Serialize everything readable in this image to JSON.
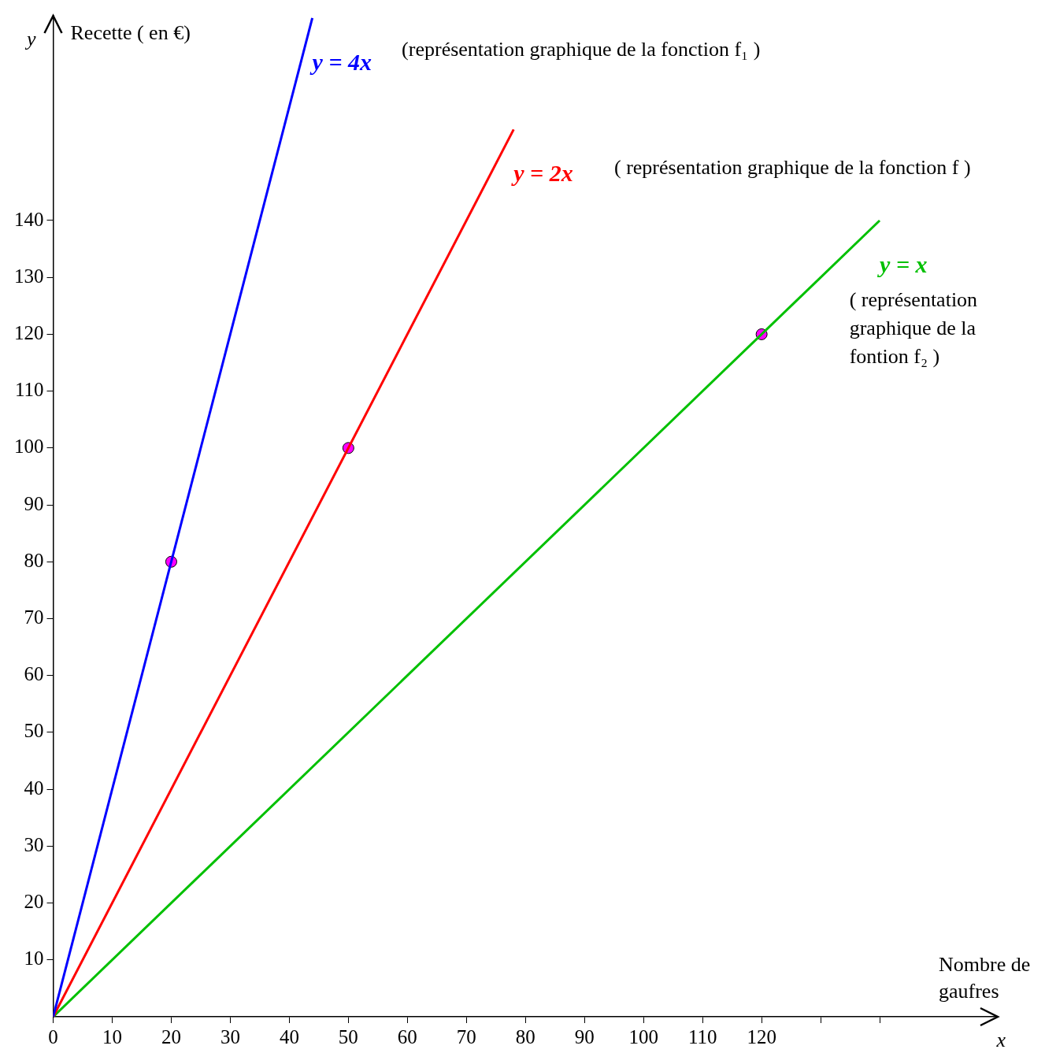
{
  "chart_data": {
    "type": "line",
    "xlabel": "x",
    "ylabel": "y",
    "xlim": [
      0,
      160
    ],
    "ylim": [
      0,
      176
    ],
    "xticks": [
      0,
      10,
      20,
      30,
      40,
      50,
      60,
      70,
      80,
      90,
      100,
      110,
      120,
      {
        "value": 130,
        "label": null
      },
      {
        "value": 140,
        "label": null
      }
    ],
    "yticks": [
      10,
      20,
      30,
      40,
      50,
      60,
      70,
      80,
      90,
      100,
      110,
      120,
      130,
      140
    ],
    "grid": false,
    "marker": "none",
    "line_style": "solid",
    "series": [
      {
        "name": "y = 4x",
        "color": "#0000ff",
        "x": [
          0,
          43.9
        ],
        "values": [
          0,
          175.6
        ]
      },
      {
        "name": "y = 2x",
        "color": "#ff0000",
        "x": [
          0,
          78
        ],
        "values": [
          0,
          156
        ]
      },
      {
        "name": "y = x",
        "color": "#00c000",
        "x": [
          0,
          140
        ],
        "values": [
          0,
          140
        ]
      },
      {
        "type": "scatter",
        "color": "#ff00ff",
        "marker": "circle",
        "x": [
          20,
          50,
          120
        ],
        "values": [
          80,
          100,
          120
        ]
      }
    ],
    "annotations": [
      "Recette ( en €)",
      "Nombre de gaufres",
      "(représentation graphique de la fonction f₁ )",
      "( représentation graphique de la fonction f )",
      "( représentation graphique de la fontion f₂ )"
    ]
  }
}
